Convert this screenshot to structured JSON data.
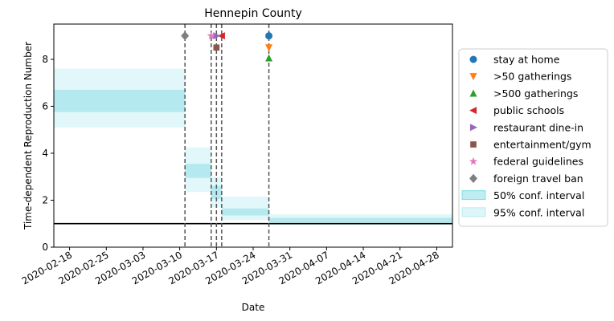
{
  "chart_data": {
    "type": "line",
    "title": "Hennepin County",
    "xlabel": "Date",
    "ylabel": "Time-dependent Reproduction Number",
    "xlim": [
      "2020-02-15",
      "2020-05-01"
    ],
    "ylim": [
      0,
      9.5
    ],
    "x_ticks": [
      "2020-02-18",
      "2020-02-25",
      "2020-03-03",
      "2020-03-10",
      "2020-03-17",
      "2020-03-24",
      "2020-03-31",
      "2020-04-07",
      "2020-04-14",
      "2020-04-21",
      "2020-04-28"
    ],
    "y_ticks": [
      0,
      2,
      4,
      6,
      8
    ],
    "reference_line": {
      "y": 1,
      "color": "#000000"
    },
    "band_color": "#17becf",
    "segments": [
      {
        "start": "2020-02-15",
        "end": "2020-03-11",
        "ci50": [
          5.75,
          6.7
        ],
        "ci95": [
          5.1,
          7.6
        ]
      },
      {
        "start": "2020-03-11",
        "end": "2020-03-16",
        "ci50": [
          2.95,
          3.55
        ],
        "ci95": [
          2.35,
          4.25
        ]
      },
      {
        "start": "2020-03-16",
        "end": "2020-03-18",
        "ci50": [
          2.05,
          2.6
        ],
        "ci95": [
          1.7,
          3.0
        ]
      },
      {
        "start": "2020-03-18",
        "end": "2020-03-27",
        "ci50": [
          1.35,
          1.65
        ],
        "ci95": [
          1.15,
          2.15
        ]
      },
      {
        "start": "2020-03-27",
        "end": "2020-05-01",
        "ci50": [
          1.05,
          1.25
        ],
        "ci95": [
          0.95,
          1.4
        ]
      }
    ],
    "interventions": [
      {
        "name": "stay at home",
        "date": "2020-03-27",
        "y": 9.0,
        "marker": "circle",
        "color": "#1f77b4"
      },
      {
        "name": ">50 gatherings",
        "date": "2020-03-27",
        "y": 8.5,
        "marker": "triangle-down",
        "color": "#ff7f0e"
      },
      {
        "name": ">500 gatherings",
        "date": "2020-03-27",
        "y": 8.05,
        "marker": "triangle-up",
        "color": "#2ca02c"
      },
      {
        "name": "public schools",
        "date": "2020-03-18",
        "y": 9.0,
        "marker": "triangle-left",
        "color": "#d62728"
      },
      {
        "name": "restaurant dine-in",
        "date": "2020-03-17",
        "y": 9.0,
        "marker": "triangle-right",
        "color": "#9467bd"
      },
      {
        "name": "entertainment/gym",
        "date": "2020-03-17",
        "y": 8.5,
        "marker": "square",
        "color": "#8c564b"
      },
      {
        "name": "federal guidelines",
        "date": "2020-03-16",
        "y": 9.0,
        "marker": "star",
        "color": "#e377c2"
      },
      {
        "name": "foreign travel ban",
        "date": "2020-03-11",
        "y": 9.0,
        "marker": "diamond",
        "color": "#7f7f7f"
      }
    ],
    "vlines": [
      "2020-03-11",
      "2020-03-16",
      "2020-03-17",
      "2020-03-18",
      "2020-03-27"
    ],
    "legend": {
      "position": "center-right",
      "entries": [
        {
          "label": "stay at home",
          "marker": "circle",
          "color": "#1f77b4"
        },
        {
          "label": ">50 gatherings",
          "marker": "triangle-down",
          "color": "#ff7f0e"
        },
        {
          "label": ">500 gatherings",
          "marker": "triangle-up",
          "color": "#2ca02c"
        },
        {
          "label": "public schools",
          "marker": "triangle-left",
          "color": "#d62728"
        },
        {
          "label": "restaurant dine-in",
          "marker": "triangle-right",
          "color": "#9467bd"
        },
        {
          "label": "entertainment/gym",
          "marker": "square",
          "color": "#8c564b"
        },
        {
          "label": "federal guidelines",
          "marker": "star",
          "color": "#e377c2"
        },
        {
          "label": "foreign travel ban",
          "marker": "diamond",
          "color": "#7f7f7f"
        },
        {
          "label": "50% conf. interval",
          "marker": "patch50",
          "color": "#17becf"
        },
        {
          "label": "95% conf. interval",
          "marker": "patch95",
          "color": "#17becf"
        }
      ]
    }
  }
}
